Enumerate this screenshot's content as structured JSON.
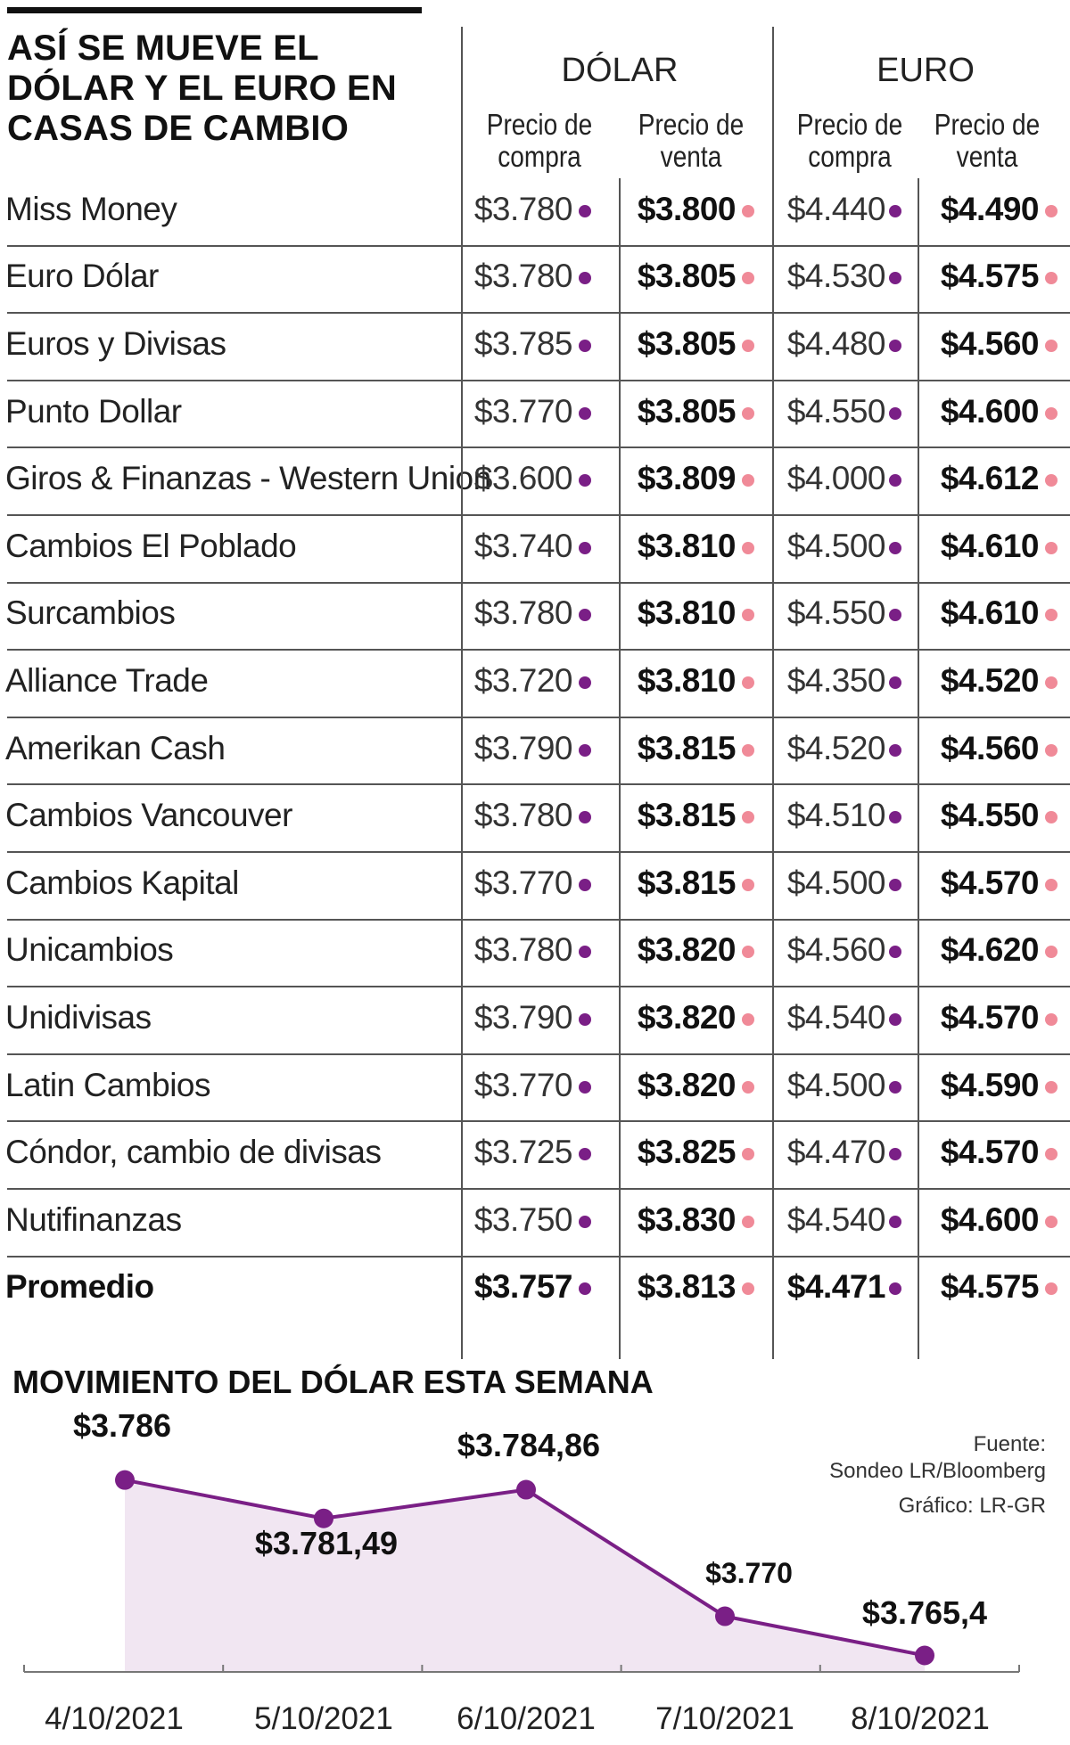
{
  "title": "ASÍ SE MUEVE EL DÓLAR Y EL EURO EN CASAS DE CAMBIO",
  "headers": {
    "dolar": "DÓLAR",
    "euro": "EURO",
    "compra": "Precio de compra",
    "venta": "Precio de venta"
  },
  "colors": {
    "compra_dot": "#7a1f86",
    "venta_dot": "#f08a98",
    "line": "#7a1f86",
    "area": "#f1e6f2"
  },
  "rows": [
    {
      "name": "Miss Money",
      "dolar_compra": "$3.780",
      "dolar_venta": "$3.800",
      "euro_compra": "$4.440",
      "euro_venta": "$4.490"
    },
    {
      "name": "Euro Dólar",
      "dolar_compra": "$3.780",
      "dolar_venta": "$3.805",
      "euro_compra": "$4.530",
      "euro_venta": "$4.575"
    },
    {
      "name": "Euros y Divisas",
      "dolar_compra": "$3.785",
      "dolar_venta": "$3.805",
      "euro_compra": "$4.480",
      "euro_venta": "$4.560"
    },
    {
      "name": "Punto Dollar",
      "dolar_compra": "$3.770",
      "dolar_venta": "$3.805",
      "euro_compra": "$4.550",
      "euro_venta": "$4.600"
    },
    {
      "name": "Giros & Finanzas - Western Union",
      "dolar_compra": "$3.600",
      "dolar_venta": "$3.809",
      "euro_compra": "$4.000",
      "euro_venta": "$4.612"
    },
    {
      "name": "Cambios El Poblado",
      "dolar_compra": "$3.740",
      "dolar_venta": "$3.810",
      "euro_compra": "$4.500",
      "euro_venta": "$4.610"
    },
    {
      "name": "Surcambios",
      "dolar_compra": "$3.780",
      "dolar_venta": "$3.810",
      "euro_compra": "$4.550",
      "euro_venta": "$4.610"
    },
    {
      "name": "Alliance Trade",
      "dolar_compra": "$3.720",
      "dolar_venta": "$3.810",
      "euro_compra": "$4.350",
      "euro_venta": "$4.520"
    },
    {
      "name": "Amerikan Cash",
      "dolar_compra": "$3.790",
      "dolar_venta": "$3.815",
      "euro_compra": "$4.520",
      "euro_venta": "$4.560"
    },
    {
      "name": "Cambios Vancouver",
      "dolar_compra": "$3.780",
      "dolar_venta": "$3.815",
      "euro_compra": "$4.510",
      "euro_venta": "$4.550"
    },
    {
      "name": "Cambios Kapital",
      "dolar_compra": "$3.770",
      "dolar_venta": "$3.815",
      "euro_compra": "$4.500",
      "euro_venta": "$4.570"
    },
    {
      "name": "Unicambios",
      "dolar_compra": "$3.780",
      "dolar_venta": "$3.820",
      "euro_compra": "$4.560",
      "euro_venta": "$4.620"
    },
    {
      "name": "Unidivisas",
      "dolar_compra": "$3.790",
      "dolar_venta": "$3.820",
      "euro_compra": "$4.540",
      "euro_venta": "$4.570"
    },
    {
      "name": "Latin Cambios",
      "dolar_compra": "$3.770",
      "dolar_venta": "$3.820",
      "euro_compra": "$4.500",
      "euro_venta": "$4.590"
    },
    {
      "name": "Cóndor, cambio de divisas",
      "dolar_compra": "$3.725",
      "dolar_venta": "$3.825",
      "euro_compra": "$4.470",
      "euro_venta": "$4.570"
    },
    {
      "name": "Nutifinanzas",
      "dolar_compra": "$3.750",
      "dolar_venta": "$3.830",
      "euro_compra": "$4.540",
      "euro_venta": "$4.600"
    }
  ],
  "average": {
    "name": "Promedio",
    "dolar_compra": "$3.757",
    "dolar_venta": "$3.813",
    "euro_compra": "$4.471",
    "euro_venta": "$4.575"
  },
  "chart_data": {
    "type": "area",
    "title": "MOVIMIENTO DEL DÓLAR ESTA SEMANA",
    "x": [
      "4/10/2021",
      "5/10/2021",
      "6/10/2021",
      "7/10/2021",
      "8/10/2021"
    ],
    "values": [
      3786,
      3781.49,
      3784.86,
      3770,
      3765.4
    ],
    "labels": [
      "$3.786",
      "$3.781,49",
      "$3.784,86",
      "$3.770",
      "$3.765,4"
    ],
    "ylim": [
      3762,
      3789
    ],
    "grid": false
  },
  "source": {
    "line1": "Fuente:",
    "line2": "Sondeo LR/Bloomberg"
  },
  "credit": "Gráfico: LR-GR"
}
